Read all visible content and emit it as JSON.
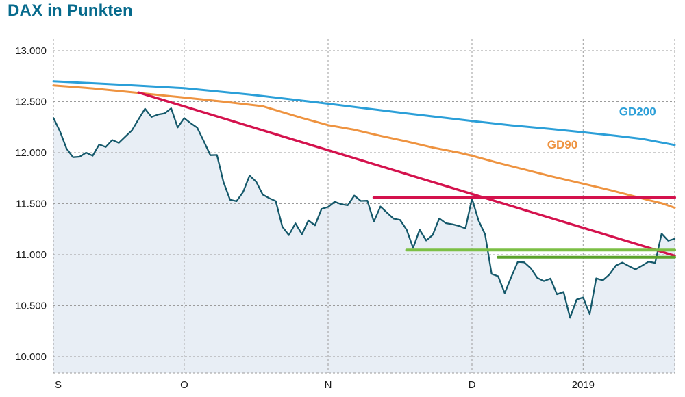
{
  "chart_data": {
    "type": "line",
    "title": "DAX in Punkten",
    "title_color": "#066a8c",
    "ylim": [
      10000,
      13000
    ],
    "x_count": 96,
    "grid": true,
    "axis": {
      "text_color": "#1a1a1a",
      "grid_color": "#9b9b9b"
    },
    "y_ticks": [
      {
        "value": 13000,
        "label": "13.000"
      },
      {
        "value": 12500,
        "label": "12.500"
      },
      {
        "value": 12000,
        "label": "12.000"
      },
      {
        "value": 11500,
        "label": "11.500"
      },
      {
        "value": 11000,
        "label": "11.000"
      },
      {
        "value": 10500,
        "label": "10.500"
      },
      {
        "value": 10000,
        "label": "10.000"
      }
    ],
    "x_ticks": [
      {
        "label": "S",
        "index": 0
      },
      {
        "label": "O",
        "index": 20
      },
      {
        "label": "N",
        "index": 42
      },
      {
        "label": "D",
        "index": 64
      },
      {
        "label": "2019",
        "index": 81
      }
    ],
    "series": [
      {
        "name": "DAX",
        "kind": "price-area",
        "color": "#14586a",
        "fill": "#e8eef5",
        "values": [
          12340,
          12210,
          12040,
          11955,
          11960,
          12000,
          11970,
          12080,
          12056,
          12124,
          12096,
          12157,
          12219,
          12326,
          12430,
          12350,
          12374,
          12385,
          12435,
          12247,
          12339,
          12288,
          12244,
          12111,
          11975,
          11977,
          11713,
          11539,
          11524,
          11614,
          11776,
          11715,
          11589,
          11554,
          11525,
          11274,
          11191,
          11307,
          11200,
          11336,
          11287,
          11448,
          11468,
          11519,
          11495,
          11484,
          11579,
          11527,
          11529,
          11325,
          11472,
          11412,
          11353,
          11341,
          11244,
          11066,
          11244,
          11138,
          11193,
          11355,
          11309,
          11298,
          11282,
          11257,
          11550,
          11335,
          11200,
          10811,
          10788,
          10622,
          10780,
          10929,
          10924,
          10866,
          10772,
          10741,
          10766,
          10611,
          10634,
          10381,
          10559,
          10580,
          10417,
          10768,
          10748,
          10804,
          10893,
          10922,
          10887,
          10856,
          10892,
          10931,
          10919,
          11206,
          11136,
          11155
        ]
      },
      {
        "name": "GD200",
        "kind": "moving-average",
        "color": "#2b9fd8",
        "points": [
          [
            0,
            12700
          ],
          [
            10,
            12668
          ],
          [
            20,
            12632
          ],
          [
            30,
            12570
          ],
          [
            36,
            12525
          ],
          [
            42,
            12480
          ],
          [
            48,
            12432
          ],
          [
            54,
            12385
          ],
          [
            60,
            12340
          ],
          [
            64,
            12310
          ],
          [
            70,
            12268
          ],
          [
            76,
            12232
          ],
          [
            81,
            12200
          ],
          [
            86,
            12165
          ],
          [
            90,
            12135
          ],
          [
            95,
            12075
          ]
        ],
        "label": {
          "text": "GD200",
          "index": 86.5,
          "value": 12365
        }
      },
      {
        "name": "GD90",
        "kind": "moving-average",
        "color": "#ee9340",
        "points": [
          [
            0,
            12660
          ],
          [
            6,
            12630
          ],
          [
            12,
            12592
          ],
          [
            20,
            12540
          ],
          [
            26,
            12500
          ],
          [
            32,
            12455
          ],
          [
            38,
            12340
          ],
          [
            42,
            12270
          ],
          [
            46,
            12225
          ],
          [
            50,
            12165
          ],
          [
            54,
            12110
          ],
          [
            58,
            12050
          ],
          [
            62,
            12000
          ],
          [
            64,
            11970
          ],
          [
            68,
            11900
          ],
          [
            72,
            11835
          ],
          [
            76,
            11770
          ],
          [
            81,
            11695
          ],
          [
            85,
            11635
          ],
          [
            88,
            11585
          ],
          [
            91,
            11535
          ],
          [
            93,
            11505
          ],
          [
            95,
            11460
          ]
        ],
        "label": {
          "text": "GD90",
          "index": 75.5,
          "value": 12040
        }
      }
    ],
    "annotations": {
      "trendline": {
        "color": "#d4124d",
        "from": [
          13,
          12590
        ],
        "to": [
          95,
          10990
        ]
      },
      "resistance": {
        "color": "#d4124d",
        "value": 11560,
        "from_index": 49,
        "to_index": 95
      },
      "supports": [
        {
          "color": "#7cbf45",
          "value": 11045,
          "from_index": 54,
          "to_index": 95
        },
        {
          "color": "#5da32c",
          "value": 10975,
          "from_index": 68,
          "to_index": 95
        }
      ]
    }
  }
}
